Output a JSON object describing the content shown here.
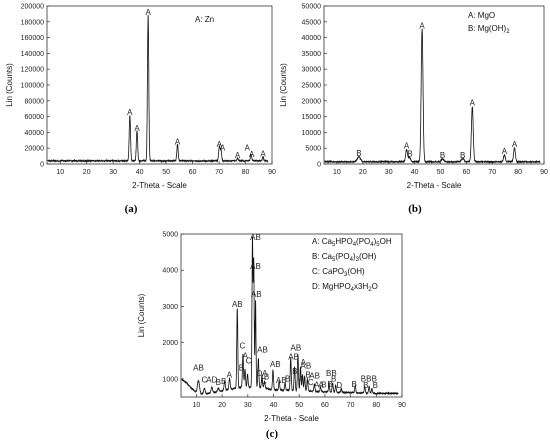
{
  "chart_data": [
    {
      "id": "a",
      "type": "line",
      "panel_label": "(a)",
      "xlabel": "2-Theta - Scale",
      "ylabel": "Lin (Counts)",
      "xlim": [
        5,
        90
      ],
      "ylim": [
        0,
        200000
      ],
      "xticks": [
        10,
        20,
        30,
        40,
        50,
        60,
        70,
        80,
        90
      ],
      "yticks": [
        0,
        20000,
        40000,
        60000,
        80000,
        100000,
        120000,
        140000,
        160000,
        180000,
        200000
      ],
      "legend": [
        "A: Zn"
      ],
      "baseline": 4000,
      "peaks": [
        {
          "x": 36.3,
          "y": 58000,
          "w": 0.25
        },
        {
          "x": 39.0,
          "y": 38000,
          "w": 0.25
        },
        {
          "x": 43.2,
          "y": 185000,
          "w": 0.25
        },
        {
          "x": 54.3,
          "y": 21000,
          "w": 0.25
        },
        {
          "x": 70.1,
          "y": 18000,
          "w": 0.25
        },
        {
          "x": 70.7,
          "y": 14000,
          "w": 0.25
        },
        {
          "x": 77.0,
          "y": 4000,
          "w": 0.25
        },
        {
          "x": 82.1,
          "y": 8000,
          "w": 0.25
        },
        {
          "x": 86.6,
          "y": 5000,
          "w": 0.25
        }
      ],
      "annotations": [
        {
          "x": 36.3,
          "y": 58000,
          "text": "A"
        },
        {
          "x": 39.0,
          "y": 38000,
          "text": "A"
        },
        {
          "x": 43.2,
          "y": 185000,
          "text": "A"
        },
        {
          "x": 54.3,
          "y": 21000,
          "text": "A"
        },
        {
          "x": 70.1,
          "y": 18000,
          "text": "A"
        },
        {
          "x": 71.3,
          "y": 13000,
          "text": "A"
        },
        {
          "x": 77.0,
          "y": 4000,
          "text": "A"
        },
        {
          "x": 80.6,
          "y": 13000,
          "text": "A"
        },
        {
          "x": 82.3,
          "y": 5000,
          "text": "A"
        },
        {
          "x": 86.6,
          "y": 6000,
          "text": "A"
        }
      ]
    },
    {
      "id": "b",
      "type": "line",
      "panel_label": "(b)",
      "xlabel": "2-Theta - Scale",
      "ylabel": "Lin (Counts)",
      "xlim": [
        5,
        90
      ],
      "ylim": [
        0,
        50000
      ],
      "xticks": [
        10,
        20,
        30,
        40,
        50,
        60,
        70,
        80,
        90
      ],
      "yticks": [
        0,
        5000,
        10000,
        15000,
        20000,
        25000,
        30000,
        35000,
        40000,
        45000,
        50000
      ],
      "legend": [
        "A: MgO",
        "B: Mg(OH)2"
      ],
      "baseline": 700,
      "peaks": [
        {
          "x": 18.5,
          "y": 1600,
          "w": 0.6
        },
        {
          "x": 36.9,
          "y": 3900,
          "w": 0.35
        },
        {
          "x": 38.0,
          "y": 1500,
          "w": 0.4
        },
        {
          "x": 42.9,
          "y": 42000,
          "w": 0.35
        },
        {
          "x": 50.8,
          "y": 900,
          "w": 0.5
        },
        {
          "x": 58.6,
          "y": 1000,
          "w": 0.5
        },
        {
          "x": 62.3,
          "y": 17500,
          "w": 0.35
        },
        {
          "x": 74.7,
          "y": 2200,
          "w": 0.35
        },
        {
          "x": 78.6,
          "y": 4400,
          "w": 0.35
        }
      ],
      "annotations": [
        {
          "x": 18.5,
          "y": 1600,
          "text": "B"
        },
        {
          "x": 36.9,
          "y": 3900,
          "text": "A"
        },
        {
          "x": 38.2,
          "y": 1500,
          "text": "B"
        },
        {
          "x": 42.9,
          "y": 42000,
          "text": "A"
        },
        {
          "x": 50.8,
          "y": 900,
          "text": "B"
        },
        {
          "x": 58.6,
          "y": 1000,
          "text": "B"
        },
        {
          "x": 62.3,
          "y": 17500,
          "text": "A"
        },
        {
          "x": 74.7,
          "y": 2200,
          "text": "A"
        },
        {
          "x": 78.6,
          "y": 4400,
          "text": "A"
        }
      ]
    },
    {
      "id": "c",
      "type": "line",
      "panel_label": "(c)",
      "xlabel": "2-Theta - Scale",
      "ylabel": "Lin (Counts)",
      "xlim": [
        4,
        90
      ],
      "ylim": [
        500,
        5000
      ],
      "xticks": [
        10,
        20,
        30,
        40,
        50,
        60,
        70,
        80,
        90
      ],
      "yticks": [
        1000,
        2000,
        3000,
        4000,
        5000
      ],
      "legend": [
        {
          "prefix": "A: Ca",
          "parts": [
            [
              "5",
              "sub"
            ],
            [
              "HPO",
              ""
            ],
            [
              "4",
              "sub"
            ],
            [
              "(PO",
              ""
            ],
            [
              "4",
              "sub"
            ],
            [
              ")",
              ""
            ],
            [
              "5",
              "sub"
            ],
            [
              "OH",
              ""
            ]
          ]
        },
        {
          "prefix": "B: Ca",
          "parts": [
            [
              "5",
              "sub"
            ],
            [
              "(PO",
              ""
            ],
            [
              "4",
              "sub"
            ],
            [
              ")",
              ""
            ],
            [
              "3",
              "sub"
            ],
            [
              "(OH)",
              ""
            ]
          ]
        },
        {
          "prefix": "C: CaPO",
          "parts": [
            [
              "3",
              "sub"
            ],
            [
              "(OH)",
              ""
            ]
          ]
        },
        {
          "prefix": "D: MgHPO",
          "parts": [
            [
              "4",
              "sub"
            ],
            [
              "x3H",
              ""
            ],
            [
              "2",
              "sub"
            ],
            [
              "O",
              ""
            ]
          ]
        }
      ],
      "baseline_points": [
        [
          4,
          1000
        ],
        [
          6,
          900
        ],
        [
          8,
          750
        ],
        [
          10,
          620
        ],
        [
          12,
          580
        ],
        [
          15,
          600
        ],
        [
          18,
          640
        ],
        [
          21,
          680
        ],
        [
          24,
          720
        ],
        [
          28,
          780
        ],
        [
          35,
          760
        ],
        [
          40,
          700
        ],
        [
          50,
          680
        ],
        [
          60,
          640
        ],
        [
          70,
          620
        ],
        [
          80,
          600
        ],
        [
          88,
          600
        ]
      ],
      "peaks": [
        {
          "x": 10.8,
          "y": 350,
          "w": 0.4
        },
        {
          "x": 13.1,
          "y": 150,
          "w": 0.3
        },
        {
          "x": 16.0,
          "y": 150,
          "w": 0.3
        },
        {
          "x": 18.5,
          "y": 100,
          "w": 0.3
        },
        {
          "x": 21.0,
          "y": 250,
          "w": 0.25
        },
        {
          "x": 22.9,
          "y": 300,
          "w": 0.25
        },
        {
          "x": 25.9,
          "y": 2200,
          "w": 0.2
        },
        {
          "x": 28.1,
          "y": 900,
          "w": 0.2
        },
        {
          "x": 28.9,
          "y": 500,
          "w": 0.2
        },
        {
          "x": 29.9,
          "y": 350,
          "w": 0.2
        },
        {
          "x": 31.8,
          "y": 4100,
          "w": 0.18
        },
        {
          "x": 32.3,
          "y": 3500,
          "w": 0.18
        },
        {
          "x": 33.0,
          "y": 2400,
          "w": 0.18
        },
        {
          "x": 34.1,
          "y": 800,
          "w": 0.2
        },
        {
          "x": 35.5,
          "y": 350,
          "w": 0.2
        },
        {
          "x": 36.5,
          "y": 200,
          "w": 0.2
        },
        {
          "x": 39.8,
          "y": 550,
          "w": 0.2
        },
        {
          "x": 42.2,
          "y": 250,
          "w": 0.2
        },
        {
          "x": 44.5,
          "y": 200,
          "w": 0.2
        },
        {
          "x": 46.7,
          "y": 900,
          "w": 0.2
        },
        {
          "x": 48.2,
          "y": 650,
          "w": 0.2
        },
        {
          "x": 49.5,
          "y": 1000,
          "w": 0.2
        },
        {
          "x": 50.5,
          "y": 650,
          "w": 0.2
        },
        {
          "x": 51.3,
          "y": 450,
          "w": 0.2
        },
        {
          "x": 52.1,
          "y": 400,
          "w": 0.2
        },
        {
          "x": 53.2,
          "y": 350,
          "w": 0.2
        },
        {
          "x": 55.9,
          "y": 200,
          "w": 0.2
        },
        {
          "x": 58.3,
          "y": 120,
          "w": 0.2
        },
        {
          "x": 61.6,
          "y": 250,
          "w": 0.2
        },
        {
          "x": 63.0,
          "y": 250,
          "w": 0.2
        },
        {
          "x": 64.2,
          "y": 200,
          "w": 0.2
        },
        {
          "x": 66.4,
          "y": 100,
          "w": 0.2
        },
        {
          "x": 71.8,
          "y": 200,
          "w": 0.2
        },
        {
          "x": 75.5,
          "y": 180,
          "w": 0.2
        },
        {
          "x": 77.2,
          "y": 200,
          "w": 0.2
        },
        {
          "x": 78.3,
          "y": 130,
          "w": 0.2
        }
      ],
      "annotations": [
        {
          "x": 10.8,
          "y": 1150,
          "text": "AB"
        },
        {
          "x": 13.1,
          "y": 820,
          "text": "C"
        },
        {
          "x": 16.0,
          "y": 820,
          "text": "AD"
        },
        {
          "x": 18.5,
          "y": 750,
          "text": "B"
        },
        {
          "x": 20.6,
          "y": 780,
          "text": "B"
        },
        {
          "x": 22.8,
          "y": 950,
          "text": "A"
        },
        {
          "x": 25.9,
          "y": 2900,
          "text": "AB"
        },
        {
          "x": 27.9,
          "y": 1750,
          "text": "C"
        },
        {
          "x": 29.0,
          "y": 1480,
          "text": "A"
        },
        {
          "x": 30.3,
          "y": 1340,
          "text": "C"
        },
        {
          "x": 27.5,
          "y": 1150,
          "text": "B"
        },
        {
          "x": 33.0,
          "y": 4750,
          "text": "AB"
        },
        {
          "x": 33.0,
          "y": 3950,
          "text": "AB"
        },
        {
          "x": 33.3,
          "y": 3180,
          "text": "AB"
        },
        {
          "x": 35.7,
          "y": 1650,
          "text": "AB"
        },
        {
          "x": 34.5,
          "y": 1000,
          "text": "D"
        },
        {
          "x": 36.3,
          "y": 770,
          "text": "C"
        },
        {
          "x": 36.6,
          "y": 1000,
          "text": "A"
        },
        {
          "x": 37.3,
          "y": 900,
          "text": "B"
        },
        {
          "x": 40.7,
          "y": 1250,
          "text": "AB"
        },
        {
          "x": 43.0,
          "y": 800,
          "text": "AB"
        },
        {
          "x": 45.5,
          "y": 850,
          "text": "B"
        },
        {
          "x": 47.8,
          "y": 1450,
          "text": "AB"
        },
        {
          "x": 48.7,
          "y": 1700,
          "text": "AB"
        },
        {
          "x": 48.3,
          "y": 1050,
          "text": "B"
        },
        {
          "x": 51.6,
          "y": 1300,
          "text": "A"
        },
        {
          "x": 52.6,
          "y": 1200,
          "text": "AB"
        },
        {
          "x": 50.7,
          "y": 850,
          "text": "A"
        },
        {
          "x": 53.5,
          "y": 950,
          "text": "B"
        },
        {
          "x": 54.5,
          "y": 750,
          "text": "C"
        },
        {
          "x": 56.0,
          "y": 930,
          "text": "AB"
        },
        {
          "x": 56.8,
          "y": 680,
          "text": "A"
        },
        {
          "x": 58.5,
          "y": 680,
          "text": "A"
        },
        {
          "x": 59.6,
          "y": 680,
          "text": "B"
        },
        {
          "x": 62.5,
          "y": 1000,
          "text": "BB"
        },
        {
          "x": 63.4,
          "y": 850,
          "text": "B"
        },
        {
          "x": 62.0,
          "y": 690,
          "text": "B"
        },
        {
          "x": 65.6,
          "y": 660,
          "text": "D"
        },
        {
          "x": 71.4,
          "y": 690,
          "text": "B"
        },
        {
          "x": 75.0,
          "y": 850,
          "text": "B"
        },
        {
          "x": 77.1,
          "y": 850,
          "text": "B"
        },
        {
          "x": 79.2,
          "y": 850,
          "text": "B"
        },
        {
          "x": 75.9,
          "y": 660,
          "text": "B"
        },
        {
          "x": 79.6,
          "y": 660,
          "text": "B"
        }
      ]
    }
  ]
}
